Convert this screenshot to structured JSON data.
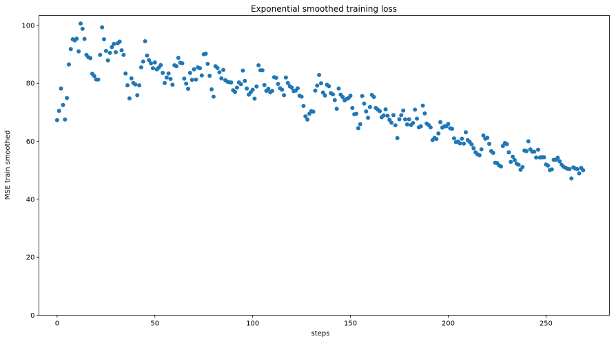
{
  "chart_data": {
    "type": "scatter",
    "title": "Exponential smoothed training loss",
    "xlabel": "steps",
    "ylabel": "MSE train smoothed",
    "xlim": [
      -9.3,
      282.5
    ],
    "ylim": [
      0,
      103.4
    ],
    "xticks": [
      0,
      50,
      100,
      150,
      200,
      250
    ],
    "yticks": [
      0,
      20,
      40,
      60,
      80,
      100
    ],
    "grid": false,
    "legend": "none",
    "marker_color": "#1f77b4",
    "series": [
      {
        "x": [
          0,
          1,
          2,
          3,
          4,
          5,
          6,
          7,
          8,
          9,
          10,
          11,
          12,
          13,
          14,
          15,
          16,
          17,
          18,
          19,
          20,
          21,
          22,
          23,
          24,
          25,
          26,
          27,
          28,
          29,
          30,
          31,
          32,
          33,
          34,
          35,
          36,
          37,
          38,
          39,
          40,
          41,
          42,
          43,
          44,
          45,
          46,
          47,
          48,
          49,
          50,
          51,
          52,
          53,
          54,
          55,
          56,
          57,
          58,
          59,
          60,
          61,
          62,
          63,
          64,
          65,
          66,
          67,
          68,
          69,
          70,
          71,
          72,
          73,
          74,
          75,
          76,
          77,
          78,
          79,
          80,
          81,
          82,
          83,
          84,
          85,
          86,
          87,
          88,
          89,
          90,
          91,
          92,
          93,
          94,
          95,
          96,
          97,
          98,
          99,
          100,
          101,
          102,
          103,
          104,
          105,
          106,
          107,
          108,
          109,
          110,
          111,
          112,
          113,
          114,
          115,
          116,
          117,
          118,
          119,
          120,
          121,
          122,
          123,
          124,
          125,
          126,
          127,
          128,
          129,
          130,
          131,
          132,
          133,
          134,
          135,
          136,
          137,
          138,
          139,
          140,
          141,
          142,
          143,
          144,
          145,
          146,
          147,
          148,
          149,
          150,
          151,
          152,
          153,
          154,
          155,
          156,
          157,
          158,
          159,
          160,
          161,
          162,
          163,
          164,
          165,
          166,
          167,
          168,
          169,
          170,
          171,
          172,
          173,
          174,
          175,
          176,
          177,
          178,
          179,
          180,
          181,
          182,
          183,
          184,
          185,
          186,
          187,
          188,
          189,
          190,
          191,
          192,
          193,
          194,
          195,
          196,
          197,
          198,
          199,
          200,
          201,
          202,
          203,
          204,
          205,
          206,
          207,
          208,
          209,
          210,
          211,
          212,
          213,
          214,
          215,
          216,
          217,
          218,
          219,
          220,
          221,
          222,
          223,
          224,
          225,
          226,
          227,
          228,
          229,
          230,
          231,
          232,
          233,
          234,
          235,
          236,
          237,
          238,
          239,
          240,
          241,
          242,
          243,
          244,
          245,
          246,
          247,
          248,
          249,
          250,
          251,
          252,
          253,
          254,
          255,
          256,
          257,
          258,
          259,
          260,
          261,
          262,
          263,
          264,
          265,
          266,
          267,
          268,
          269
        ],
        "y": [
          67.3,
          70.5,
          78.2,
          72.5,
          67.5,
          74.9,
          86.5,
          91.8,
          95.2,
          94.8,
          95.4,
          91.0,
          100.6,
          98.8,
          95.3,
          89.8,
          89.0,
          88.7,
          83.3,
          82.5,
          81.3,
          81.3,
          89.8,
          99.3,
          95.2,
          91.2,
          87.9,
          90.5,
          92.5,
          93.6,
          90.7,
          93.8,
          94.4,
          91.4,
          89.8,
          83.4,
          79.3,
          74.8,
          81.7,
          80.1,
          79.6,
          75.9,
          79.3,
          85.5,
          87.5,
          94.5,
          89.6,
          88.0,
          86.9,
          85.2,
          87.2,
          84.8,
          85.4,
          86.3,
          83.6,
          80.1,
          82.0,
          83.4,
          81.5,
          79.5,
          86.2,
          85.9,
          88.8,
          87.1,
          86.9,
          81.6,
          79.9,
          78.1,
          83.6,
          81.2,
          84.8,
          81.3,
          85.5,
          85.2,
          82.7,
          90.0,
          90.2,
          86.7,
          82.6,
          77.9,
          75.4,
          85.9,
          85.3,
          83.8,
          81.7,
          84.6,
          81.1,
          80.6,
          80.4,
          80.3,
          77.6,
          77.0,
          78.5,
          80.3,
          79.7,
          84.4,
          80.8,
          78.2,
          76.1,
          76.9,
          77.8,
          74.7,
          78.9,
          86.2,
          84.5,
          84.5,
          79.4,
          77.4,
          78.1,
          76.9,
          77.4,
          82.1,
          81.9,
          79.8,
          78.3,
          77.8,
          75.9,
          82.0,
          80.1,
          79.0,
          78.5,
          77.3,
          77.5,
          78.3,
          75.7,
          75.4,
          72.2,
          68.6,
          67.5,
          69.5,
          70.4,
          70.2,
          77.5,
          79.2,
          82.9,
          80.0,
          76.8,
          75.8,
          79.5,
          79.0,
          76.6,
          76.2,
          74.2,
          71.2,
          78.2,
          76.1,
          75.3,
          74.1,
          74.6,
          74.9,
          75.7,
          71.5,
          69.3,
          69.5,
          64.5,
          65.9,
          75.6,
          73.0,
          70.3,
          68.1,
          71.8,
          76.0,
          75.3,
          71.5,
          70.9,
          70.4,
          68.3,
          68.9,
          71.0,
          68.8,
          67.4,
          66.4,
          69.0,
          65.5,
          61.1,
          67.6,
          69.0,
          70.6,
          67.6,
          65.8,
          67.6,
          65.6,
          66.3,
          70.9,
          67.8,
          64.8,
          65.2,
          72.3,
          69.6,
          66.1,
          65.6,
          64.8,
          60.4,
          61.2,
          60.8,
          62.7,
          66.6,
          64.7,
          65.2,
          65.2,
          66.0,
          64.5,
          64.3,
          61.0,
          59.7,
          59.9,
          59.3,
          60.9,
          59.2,
          63.1,
          60.4,
          59.8,
          58.9,
          57.6,
          56.2,
          55.5,
          55.2,
          57.2,
          62.0,
          60.9,
          61.2,
          59.1,
          56.6,
          56.0,
          52.6,
          52.5,
          51.7,
          51.3,
          58.4,
          59.4,
          59.0,
          56.2,
          52.9,
          54.7,
          53.5,
          52.3,
          51.9,
          50.2,
          51.1,
          56.8,
          56.6,
          60.0,
          57.2,
          56.4,
          56.4,
          54.4,
          57.1,
          54.4,
          54.5,
          54.5,
          52.0,
          51.6,
          50.1,
          50.3,
          53.6,
          53.6,
          54.3,
          53.1,
          51.9,
          51.2,
          50.9,
          50.5,
          50.4,
          47.2,
          51.0,
          50.6,
          50.4,
          48.9,
          50.8,
          50.0
        ]
      }
    ]
  }
}
